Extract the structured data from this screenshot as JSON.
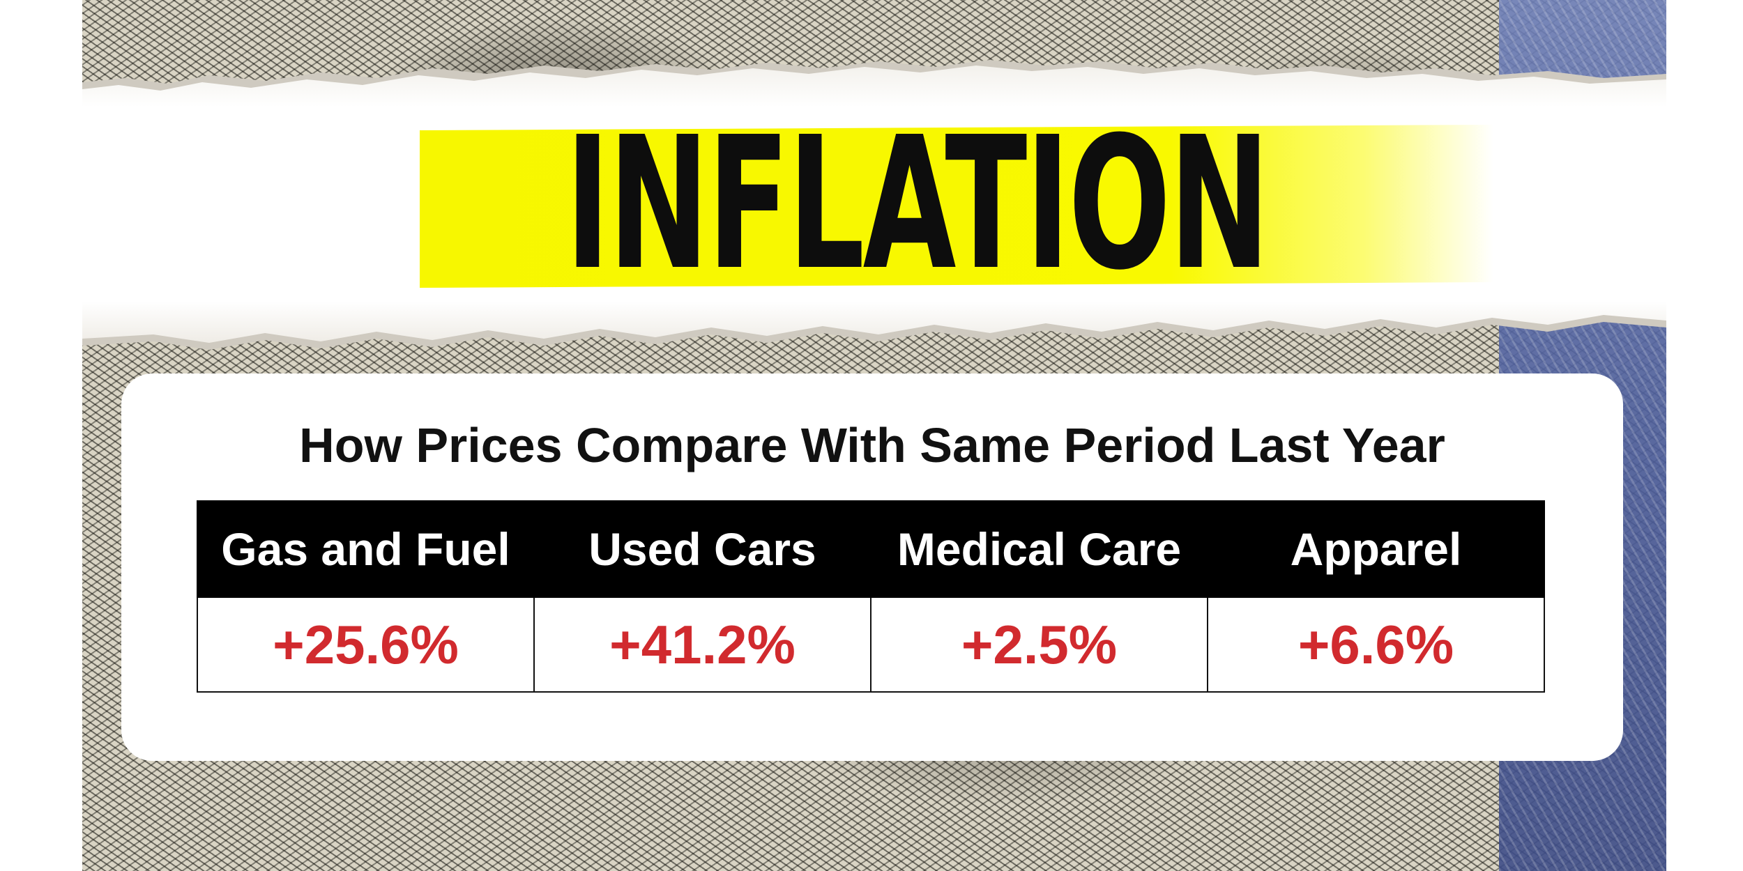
{
  "headline": "INFLATION",
  "table": {
    "title": "How Prices Compare With Same Period Last Year",
    "columns": [
      {
        "label": "Gas and Fuel",
        "value": "+25.6%"
      },
      {
        "label": "Used Cars",
        "value": "+41.2%"
      },
      {
        "label": "Medical Care",
        "value": "+2.5%"
      },
      {
        "label": "Apparel",
        "value": "+6.6%"
      }
    ]
  },
  "colors": {
    "highlight": "#f7f700",
    "headline_text": "#0d0d0d",
    "header_bg": "#000000",
    "header_text": "#ffffff",
    "value_text": "#d12a2e",
    "card_bg": "#ffffff"
  },
  "background": {
    "image": "banknote-engraving"
  }
}
